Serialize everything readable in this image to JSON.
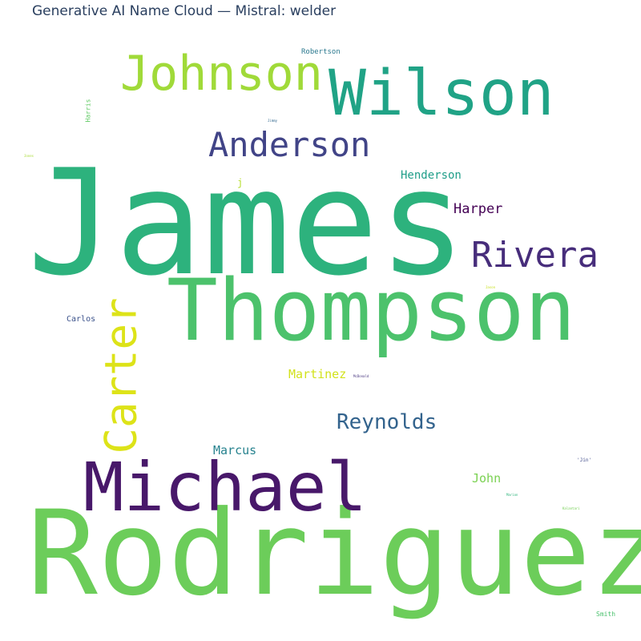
{
  "title": "Generative AI Name Cloud — Mistral: welder",
  "words": [
    {
      "text": "James",
      "color": "#2db27d"
    },
    {
      "text": "Rodriguez",
      "color": "#6ccd5a"
    },
    {
      "text": "Thompson",
      "color": "#4cc26c"
    },
    {
      "text": "Michael",
      "color": "#48186a"
    },
    {
      "text": "Wilson",
      "color": "#20a386"
    },
    {
      "text": "Johnson",
      "color": "#a0da39"
    },
    {
      "text": "Carter",
      "color": "#dde318"
    },
    {
      "text": "Anderson",
      "color": "#414487"
    },
    {
      "text": "Rivera",
      "color": "#472d7b"
    },
    {
      "text": "Reynolds",
      "color": "#33638d"
    },
    {
      "text": "Harper",
      "color": "#440154"
    },
    {
      "text": "Henderson",
      "color": "#1f9e89"
    },
    {
      "text": "Martinez",
      "color": "#d2e21b"
    },
    {
      "text": "Marcus",
      "color": "#26828e"
    },
    {
      "text": "John",
      "color": "#7ad151"
    },
    {
      "text": "Carlos",
      "color": "#3b528b"
    },
    {
      "text": "Robertson",
      "color": "#2a788e"
    },
    {
      "text": "Harris",
      "color": "#5ec962"
    },
    {
      "text": "j",
      "color": "#b5de2b"
    },
    {
      "text": "Smith",
      "color": "#4ac16d"
    },
    {
      "text": "'Jin'",
      "color": "#3e4a89"
    },
    {
      "text": "Jimmy",
      "color": "#31688e"
    },
    {
      "text": "McDonald",
      "color": "#46337e"
    },
    {
      "text": "Marion",
      "color": "#2fb47c"
    },
    {
      "text": "Kalantari",
      "color": "#75d054"
    },
    {
      "text": "Jones",
      "color": "#a8db34"
    },
    {
      "text": "Jason",
      "color": "#c8e020"
    }
  ]
}
